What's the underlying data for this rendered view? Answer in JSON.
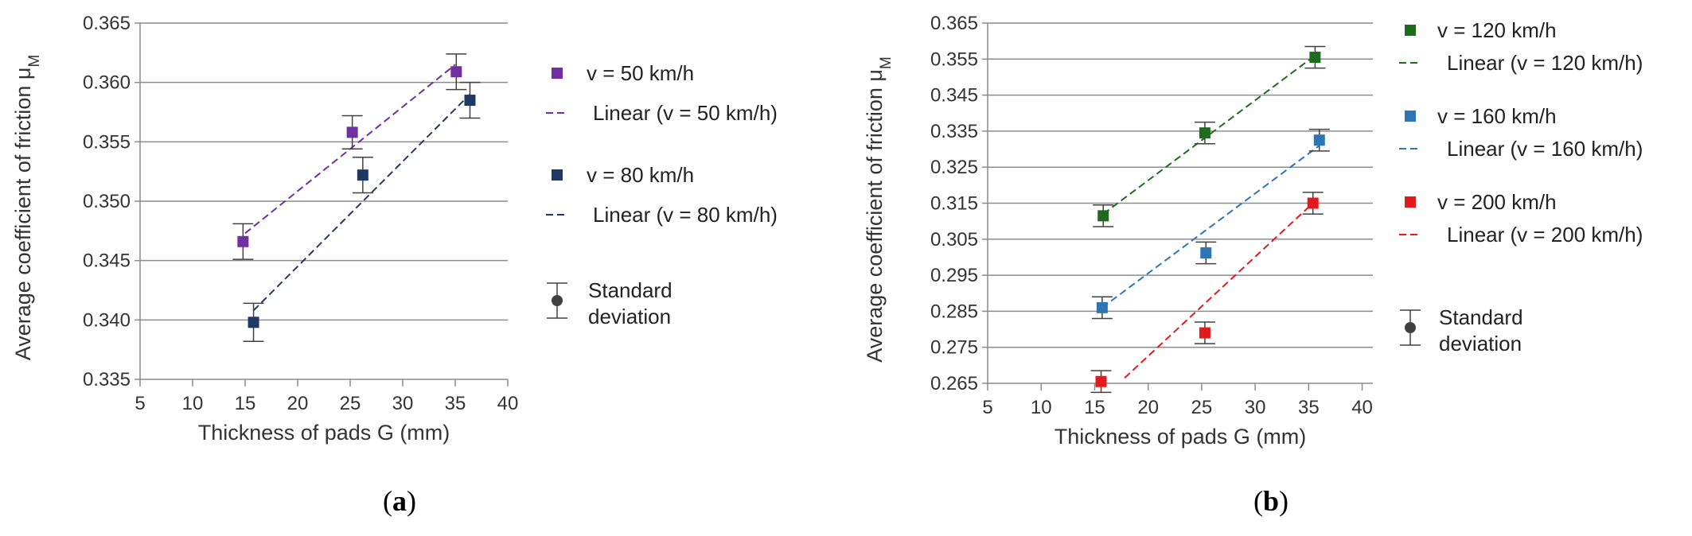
{
  "chart_data": [
    {
      "type": "scatter",
      "panel_label": "a",
      "xlabel": "Thickness of pads G (mm)",
      "ylabel": "Average coefficient of friction μ",
      "ylabel_subscript": "M",
      "xlim": [
        5,
        40
      ],
      "ylim": [
        0.335,
        0.365
      ],
      "x_ticks": [
        "5",
        "10",
        "15",
        "20",
        "25",
        "30",
        "35",
        "40"
      ],
      "y_ticks": [
        "0.335",
        "0.340",
        "0.345",
        "0.350",
        "0.355",
        "0.360",
        "0.365"
      ],
      "grid": "horizontal",
      "legend_position": "right",
      "series": [
        {
          "name": "v = 50 km/h",
          "trend_name": "Linear (v = 50 km/h)",
          "color": "#7030A0",
          "x": [
            15,
            25,
            35
          ],
          "display_x": [
            14.8,
            25.2,
            35.1
          ],
          "y": [
            0.3466,
            0.3558,
            0.3609
          ],
          "err": [
            0.0015,
            0.0014,
            0.0015
          ],
          "trend": [
            [
              15,
              0.3473
            ],
            [
              35,
              0.3615
            ]
          ]
        },
        {
          "name": "v = 80 km/h",
          "trend_name": "Linear (v = 80 km/h)",
          "color": "#1F3864",
          "x": [
            15,
            25,
            35
          ],
          "display_x": [
            15.8,
            26.2,
            36.4
          ],
          "y": [
            0.3398,
            0.3522,
            0.3585
          ],
          "err": [
            0.0016,
            0.0015,
            0.0015
          ],
          "trend": [
            [
              15.8,
              0.3408
            ],
            [
              36.4,
              0.359
            ]
          ]
        }
      ],
      "legend_extra": {
        "name": "Standard",
        "name2": "deviation",
        "color": "#404040"
      }
    },
    {
      "type": "scatter",
      "panel_label": "b",
      "xlabel": "Thickness of pads  G (mm)",
      "ylabel": "Average coefficient of friction μ",
      "ylabel_subscript": "M",
      "xlim": [
        5,
        41
      ],
      "ylim": [
        0.265,
        0.365
      ],
      "x_ticks": [
        "5",
        "10",
        "15",
        "20",
        "25",
        "30",
        "35",
        "40"
      ],
      "y_ticks": [
        "0.265",
        "0.275",
        "0.285",
        "0.295",
        "0.305",
        "0.315",
        "0.325",
        "0.335",
        "0.345",
        "0.355",
        "0.365"
      ],
      "grid": "horizontal",
      "legend_position": "right",
      "series": [
        {
          "name": "v = 120 km/h",
          "trend_name": "Linear (v = 120 km/h)",
          "color": "#1E6B1E",
          "x": [
            15,
            25,
            35
          ],
          "display_x": [
            15.8,
            25.3,
            35.6
          ],
          "y": [
            0.3115,
            0.3345,
            0.3555
          ],
          "err": [
            0.003,
            0.003,
            0.003
          ],
          "trend": [
            [
              15.8,
              0.312
            ],
            [
              35.6,
              0.356
            ]
          ]
        },
        {
          "name": "v = 160 km/h",
          "trend_name": "Linear (v = 160 km/h)",
          "color": "#2E75B6",
          "x": [
            15,
            25,
            35
          ],
          "display_x": [
            15.7,
            25.4,
            36.0
          ],
          "y": [
            0.286,
            0.3012,
            0.3325
          ],
          "err": [
            0.003,
            0.003,
            0.003
          ],
          "trend": [
            [
              15.7,
              0.286
            ],
            [
              36.0,
              0.331
            ]
          ]
        },
        {
          "name": "v = 200 km/h",
          "trend_name": "Linear (v = 200 km/h)",
          "color": "#E31A1C",
          "x": [
            15,
            25,
            35
          ],
          "display_x": [
            15.6,
            25.3,
            35.4
          ],
          "y": [
            0.2655,
            0.279,
            0.315
          ],
          "err": [
            0.003,
            0.003,
            0.003
          ],
          "trend": [
            [
              17.8,
              0.2665
            ],
            [
              35.4,
              0.315
            ]
          ]
        }
      ],
      "legend_extra": {
        "name": "Standard",
        "name2": "deviation",
        "color": "#404040"
      }
    }
  ],
  "captions": [
    {
      "open": "(",
      "letter": "a",
      "close": ")"
    },
    {
      "open": "(",
      "letter": "b",
      "close": ")"
    }
  ]
}
